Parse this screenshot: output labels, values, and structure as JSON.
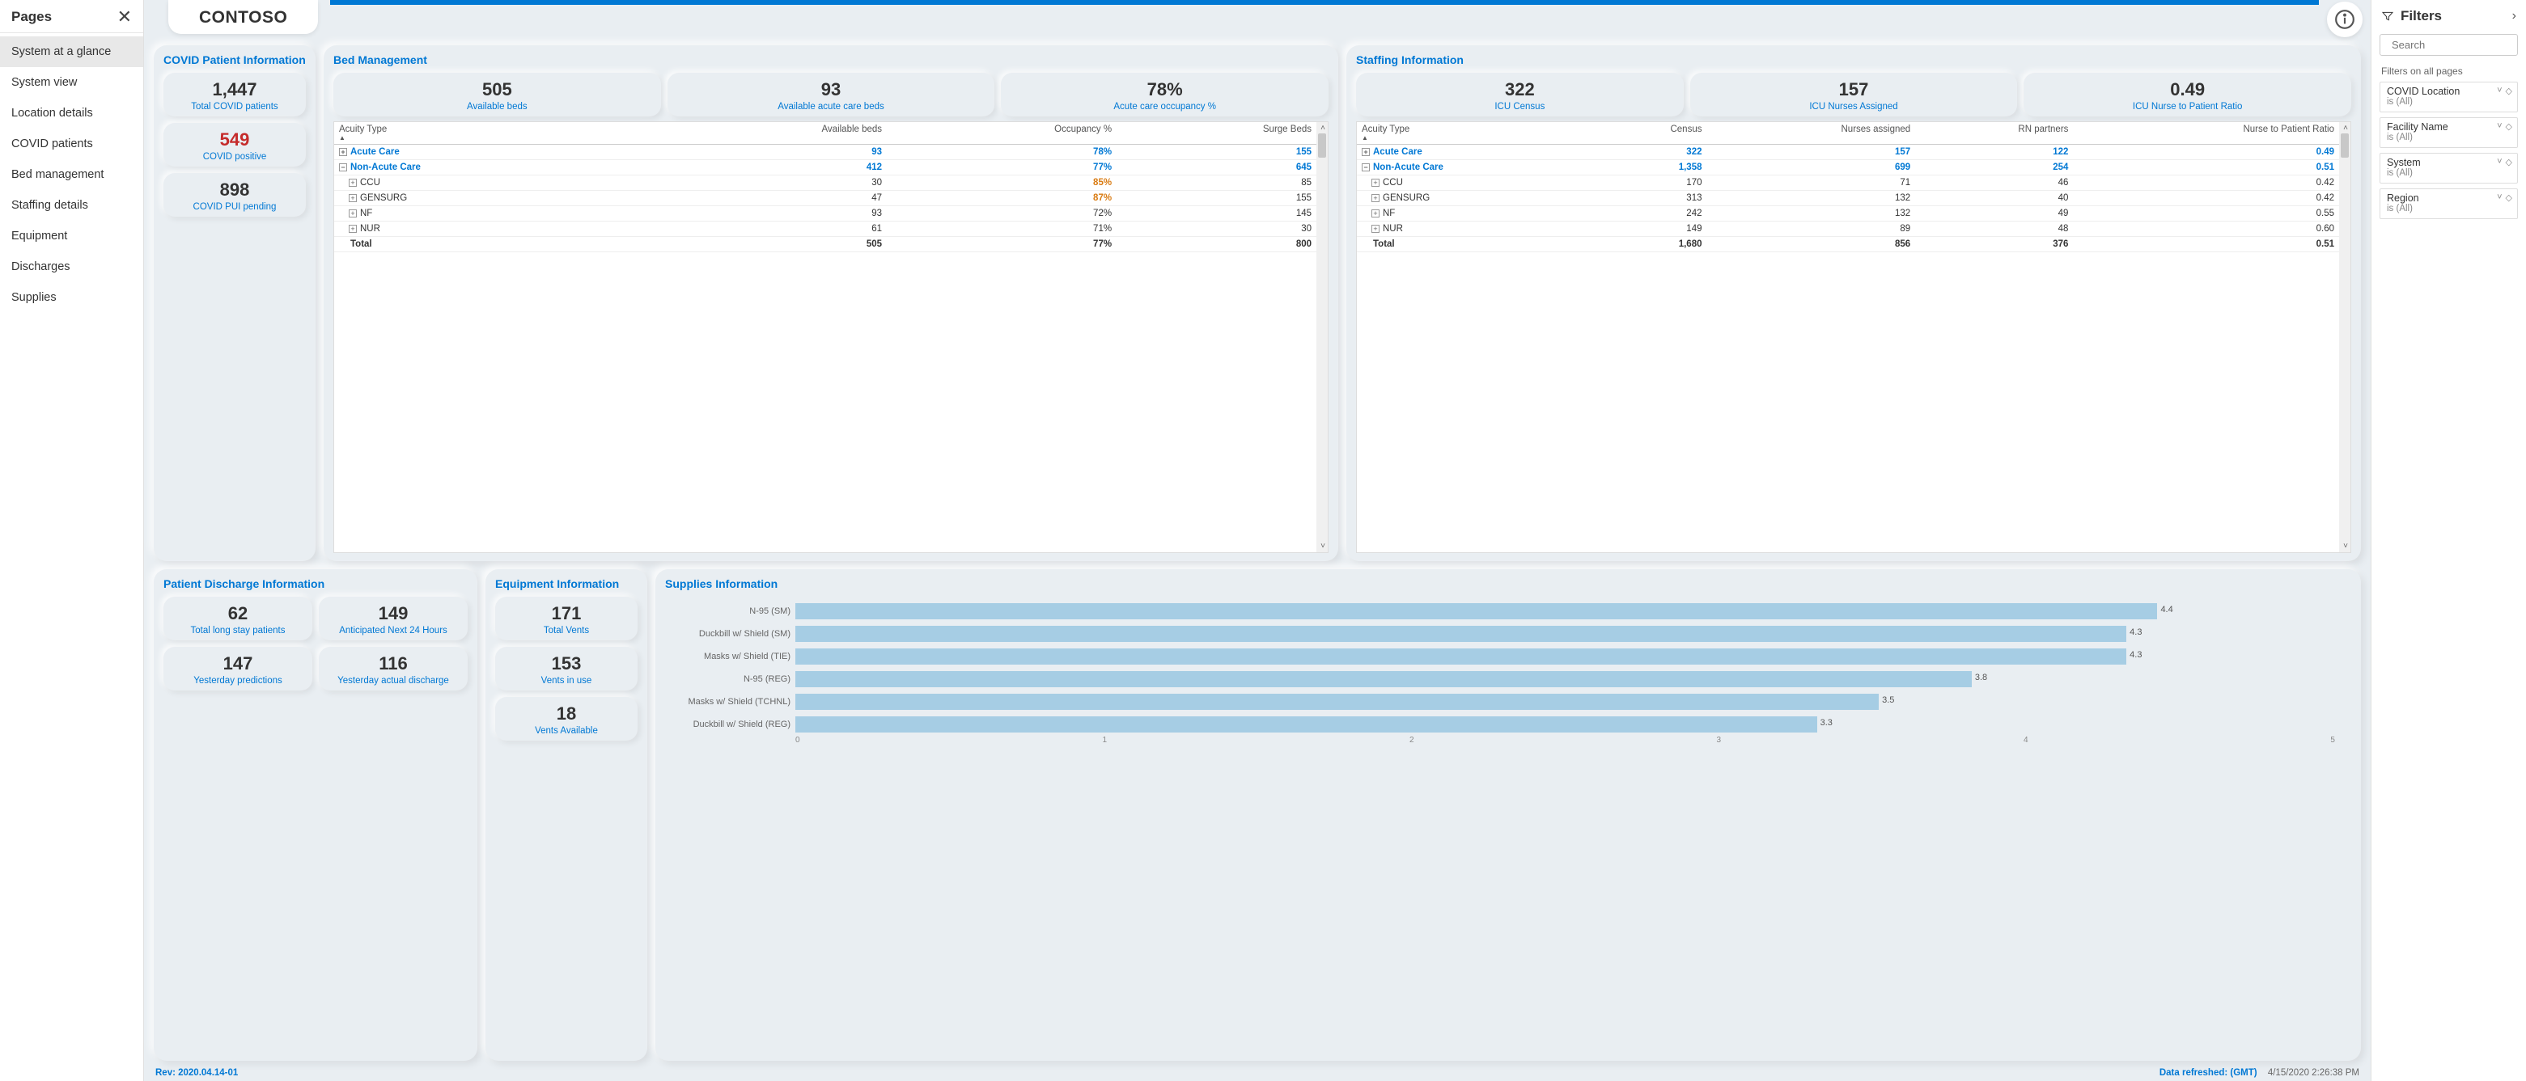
{
  "pages": {
    "title": "Pages",
    "items": [
      "System at a glance",
      "System view",
      "Location details",
      "COVID patients",
      "Bed management",
      "Staffing details",
      "Equipment",
      "Discharges",
      "Supplies"
    ],
    "active_index": 0
  },
  "brand": "CONTOSO",
  "top_bar_color": "#0078d4",
  "covid_card": {
    "title": "COVID Patient Information",
    "kpis": [
      {
        "value": "1,447",
        "label": "Total COVID patients",
        "red": false
      },
      {
        "value": "549",
        "label": "COVID positive",
        "red": true
      },
      {
        "value": "898",
        "label": "COVID PUI pending",
        "red": false
      }
    ]
  },
  "bed_card": {
    "title": "Bed Management",
    "kpis": [
      {
        "value": "505",
        "label": "Available beds"
      },
      {
        "value": "93",
        "label": "Available acute care beds"
      },
      {
        "value": "78%",
        "label": "Acute care occupancy %"
      }
    ],
    "columns": [
      "Acuity Type",
      "Available beds",
      "Occupancy %",
      "Surge Beds"
    ],
    "rows": [
      {
        "exp": "+",
        "name": "Acute Care",
        "v": [
          "93",
          "78%",
          "155"
        ],
        "bold": true,
        "orange_col": null
      },
      {
        "exp": "−",
        "name": "Non-Acute Care",
        "v": [
          "412",
          "77%",
          "645"
        ],
        "bold": true,
        "orange_col": null
      },
      {
        "exp": "+",
        "name": "CCU",
        "v": [
          "30",
          "85%",
          "85"
        ],
        "indent": true,
        "orange_col": 1
      },
      {
        "exp": "+",
        "name": "GENSURG",
        "v": [
          "47",
          "87%",
          "155"
        ],
        "indent": true,
        "orange_col": 1
      },
      {
        "exp": "+",
        "name": "NF",
        "v": [
          "93",
          "72%",
          "145"
        ],
        "indent": true
      },
      {
        "exp": "+",
        "name": "NUR",
        "v": [
          "61",
          "71%",
          "30"
        ],
        "indent": true
      }
    ],
    "total": {
      "name": "Total",
      "v": [
        "505",
        "77%",
        "800"
      ]
    }
  },
  "staff_card": {
    "title": "Staffing Information",
    "kpis": [
      {
        "value": "322",
        "label": "ICU Census"
      },
      {
        "value": "157",
        "label": "ICU Nurses Assigned"
      },
      {
        "value": "0.49",
        "label": "ICU Nurse to Patient Ratio"
      }
    ],
    "columns": [
      "Acuity Type",
      "Census",
      "Nurses assigned",
      "RN partners",
      "Nurse to Patient Ratio"
    ],
    "rows": [
      {
        "exp": "+",
        "name": "Acute Care",
        "v": [
          "322",
          "157",
          "122",
          "0.49"
        ],
        "bold": true
      },
      {
        "exp": "−",
        "name": "Non-Acute Care",
        "v": [
          "1,358",
          "699",
          "254",
          "0.51"
        ],
        "bold": true
      },
      {
        "exp": "+",
        "name": "CCU",
        "v": [
          "170",
          "71",
          "46",
          "0.42"
        ],
        "indent": true
      },
      {
        "exp": "+",
        "name": "GENSURG",
        "v": [
          "313",
          "132",
          "40",
          "0.42"
        ],
        "indent": true
      },
      {
        "exp": "+",
        "name": "NF",
        "v": [
          "242",
          "132",
          "49",
          "0.55"
        ],
        "indent": true
      },
      {
        "exp": "+",
        "name": "NUR",
        "v": [
          "149",
          "89",
          "48",
          "0.60"
        ],
        "indent": true
      }
    ],
    "total": {
      "name": "Total",
      "v": [
        "1,680",
        "856",
        "376",
        "0.51"
      ]
    }
  },
  "discharge_card": {
    "title": "Patient Discharge Information",
    "kpis": [
      {
        "value": "62",
        "label": "Total long stay patients"
      },
      {
        "value": "149",
        "label": "Anticipated Next 24 Hours"
      },
      {
        "value": "147",
        "label": "Yesterday predictions"
      },
      {
        "value": "116",
        "label": "Yesterday actual discharge"
      }
    ]
  },
  "equip_card": {
    "title": "Equipment Information",
    "kpis": [
      {
        "value": "171",
        "label": "Total Vents"
      },
      {
        "value": "153",
        "label": "Vents in use"
      },
      {
        "value": "18",
        "label": "Vents Available"
      }
    ]
  },
  "supplies_card": {
    "title": "Supplies Information",
    "bar_color": "#a6cde4",
    "max": 5,
    "bars": [
      {
        "label": "N-95 (SM)",
        "value": 4.4
      },
      {
        "label": "Duckbill w/ Shield (SM)",
        "value": 4.3
      },
      {
        "label": "Masks w/ Shield (TIE)",
        "value": 4.3
      },
      {
        "label": "N-95 (REG)",
        "value": 3.8
      },
      {
        "label": "Masks w/ Shield (TCHNL)",
        "value": 3.5
      },
      {
        "label": "Duckbill w/ Shield (REG)",
        "value": 3.3
      }
    ],
    "axis": [
      "0",
      "1",
      "2",
      "3",
      "4",
      "5"
    ]
  },
  "footer": {
    "rev": "Rev: 2020.04.14-01",
    "refreshed_label": "Data refreshed: (GMT)",
    "timestamp": "4/15/2020 2:26:38 PM"
  },
  "filters": {
    "title": "Filters",
    "search_placeholder": "Search",
    "section_label": "Filters on all pages",
    "items": [
      {
        "name": "COVID Location",
        "value": "is (All)"
      },
      {
        "name": "Facility Name",
        "value": "is (All)"
      },
      {
        "name": "System",
        "value": "is (All)"
      },
      {
        "name": "Region",
        "value": "is (All)"
      }
    ]
  }
}
